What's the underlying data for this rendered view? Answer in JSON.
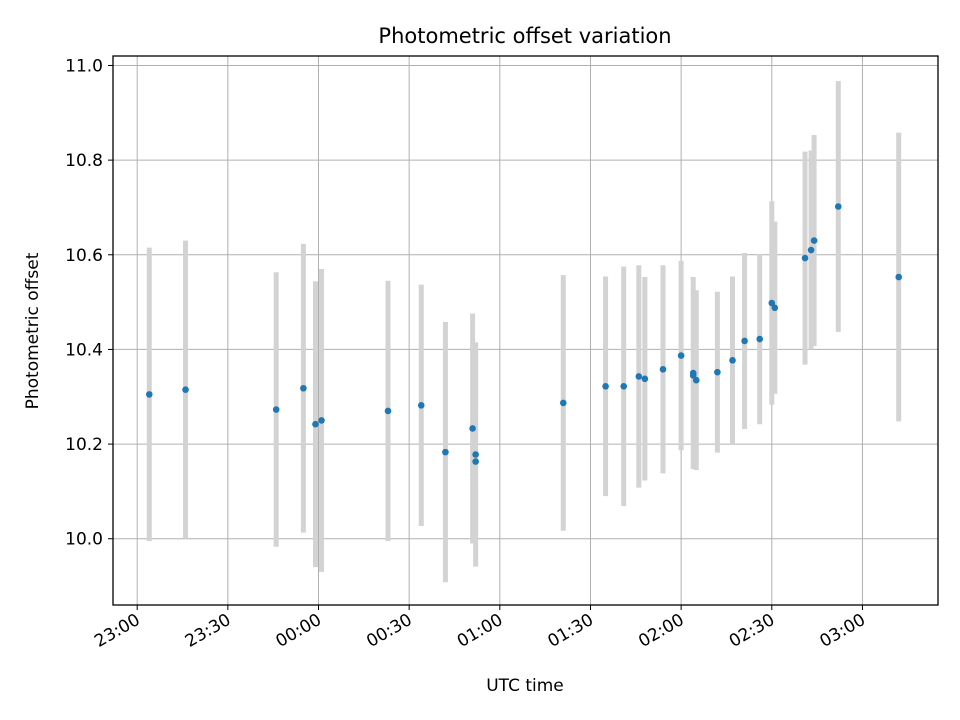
{
  "chart_data": {
    "type": "scatter",
    "title": "Photometric offset variation",
    "xlabel": "UTC time",
    "ylabel": "Photometric offset",
    "x_tick_labels": [
      "23:00",
      "23:30",
      "00:00",
      "00:30",
      "01:00",
      "01:30",
      "02:00",
      "02:30",
      "03:00"
    ],
    "y_tick_labels": [
      "10.0",
      "10.2",
      "10.4",
      "10.6",
      "10.8",
      "11.0"
    ],
    "xlim": [
      "22:52",
      "03:25"
    ],
    "ylim": [
      9.86,
      11.02
    ],
    "grid": true,
    "point_color": "#1f77b4",
    "errorbar_color": "#d3d3d3",
    "points": [
      {
        "x": "23:04",
        "y": 10.305,
        "err": 0.31
      },
      {
        "x": "23:16",
        "y": 10.315,
        "err": 0.315
      },
      {
        "x": "23:46",
        "y": 10.273,
        "err": 0.29
      },
      {
        "x": "23:55",
        "y": 10.318,
        "err": 0.305
      },
      {
        "x": "23:59",
        "y": 10.242,
        "err": 0.302
      },
      {
        "x": "00:01",
        "y": 10.25,
        "err": 0.32
      },
      {
        "x": "00:23",
        "y": 10.27,
        "err": 0.275
      },
      {
        "x": "00:34",
        "y": 10.282,
        "err": 0.255
      },
      {
        "x": "00:42",
        "y": 10.183,
        "err": 0.275
      },
      {
        "x": "00:51",
        "y": 10.233,
        "err": 0.243
      },
      {
        "x": "00:52",
        "y": 10.163,
        "err": 0.0
      },
      {
        "x": "00:52",
        "y": 10.178,
        "err": 0.237
      },
      {
        "x": "01:21",
        "y": 10.287,
        "err": 0.27
      },
      {
        "x": "01:35",
        "y": 10.322,
        "err": 0.232
      },
      {
        "x": "01:41",
        "y": 10.322,
        "err": 0.253
      },
      {
        "x": "01:46",
        "y": 10.343,
        "err": 0.235
      },
      {
        "x": "01:48",
        "y": 10.338,
        "err": 0.215
      },
      {
        "x": "01:54",
        "y": 10.358,
        "err": 0.22
      },
      {
        "x": "02:00",
        "y": 10.387,
        "err": 0.2
      },
      {
        "x": "02:04",
        "y": 10.35,
        "err": 0.203
      },
      {
        "x": "02:04",
        "y": 10.345,
        "err": 0.0
      },
      {
        "x": "02:05",
        "y": 10.335,
        "err": 0.19
      },
      {
        "x": "02:12",
        "y": 10.352,
        "err": 0.17
      },
      {
        "x": "02:17",
        "y": 10.377,
        "err": 0.177
      },
      {
        "x": "02:21",
        "y": 10.418,
        "err": 0.186
      },
      {
        "x": "02:26",
        "y": 10.422,
        "err": 0.18
      },
      {
        "x": "02:30",
        "y": 10.498,
        "err": 0.215
      },
      {
        "x": "02:31",
        "y": 10.488,
        "err": 0.182
      },
      {
        "x": "02:41",
        "y": 10.593,
        "err": 0.225
      },
      {
        "x": "02:43",
        "y": 10.61,
        "err": 0.21
      },
      {
        "x": "02:44",
        "y": 10.63,
        "err": 0.223
      },
      {
        "x": "02:52",
        "y": 10.702,
        "err": 0.265
      },
      {
        "x": "03:12",
        "y": 10.553,
        "err": 0.305
      }
    ]
  }
}
